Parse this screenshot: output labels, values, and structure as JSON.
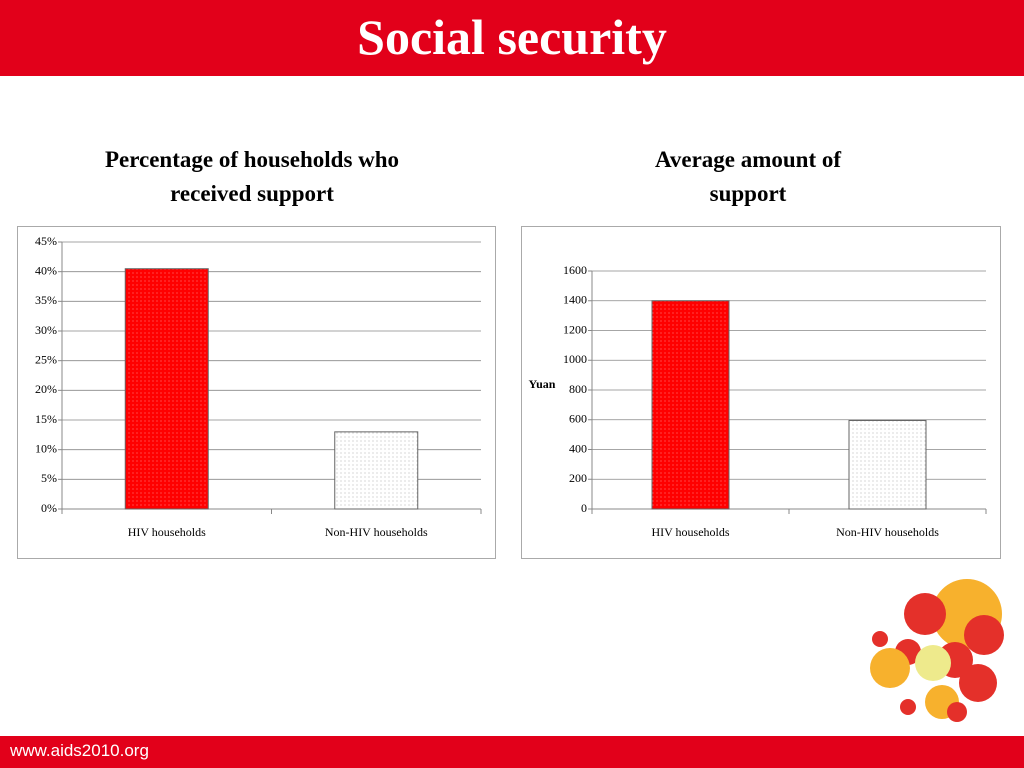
{
  "header": {
    "title": "Social security"
  },
  "footer": {
    "url": "www.aids2010.org"
  },
  "chart_data": [
    {
      "type": "bar",
      "title": "Percentage of households who received support",
      "categories": [
        "HIV households",
        "Non-HIV households"
      ],
      "values": [
        40.5,
        13
      ],
      "colors": [
        "#ff0000",
        "#ffffff"
      ],
      "ylim": [
        0,
        45
      ],
      "yticks": [
        {
          "value": 0,
          "label": "0%"
        },
        {
          "value": 5,
          "label": "5%"
        },
        {
          "value": 10,
          "label": "10%"
        },
        {
          "value": 15,
          "label": "15%"
        },
        {
          "value": 20,
          "label": "20%"
        },
        {
          "value": 25,
          "label": "25%"
        },
        {
          "value": 30,
          "label": "30%"
        },
        {
          "value": 35,
          "label": "35%"
        },
        {
          "value": 40,
          "label": "40%"
        },
        {
          "value": 45,
          "label": "45%"
        }
      ],
      "grid": true
    },
    {
      "type": "bar",
      "title": "Average amount of support",
      "y_label": "Yuan",
      "categories": [
        "HIV households",
        "Non-HIV households"
      ],
      "values": [
        1400,
        595
      ],
      "colors": [
        "#ff0000",
        "#ffffff"
      ],
      "ylim": [
        0,
        1600
      ],
      "yticks": [
        0,
        200,
        400,
        600,
        800,
        1000,
        1200,
        1400,
        1600
      ],
      "grid": true
    }
  ]
}
